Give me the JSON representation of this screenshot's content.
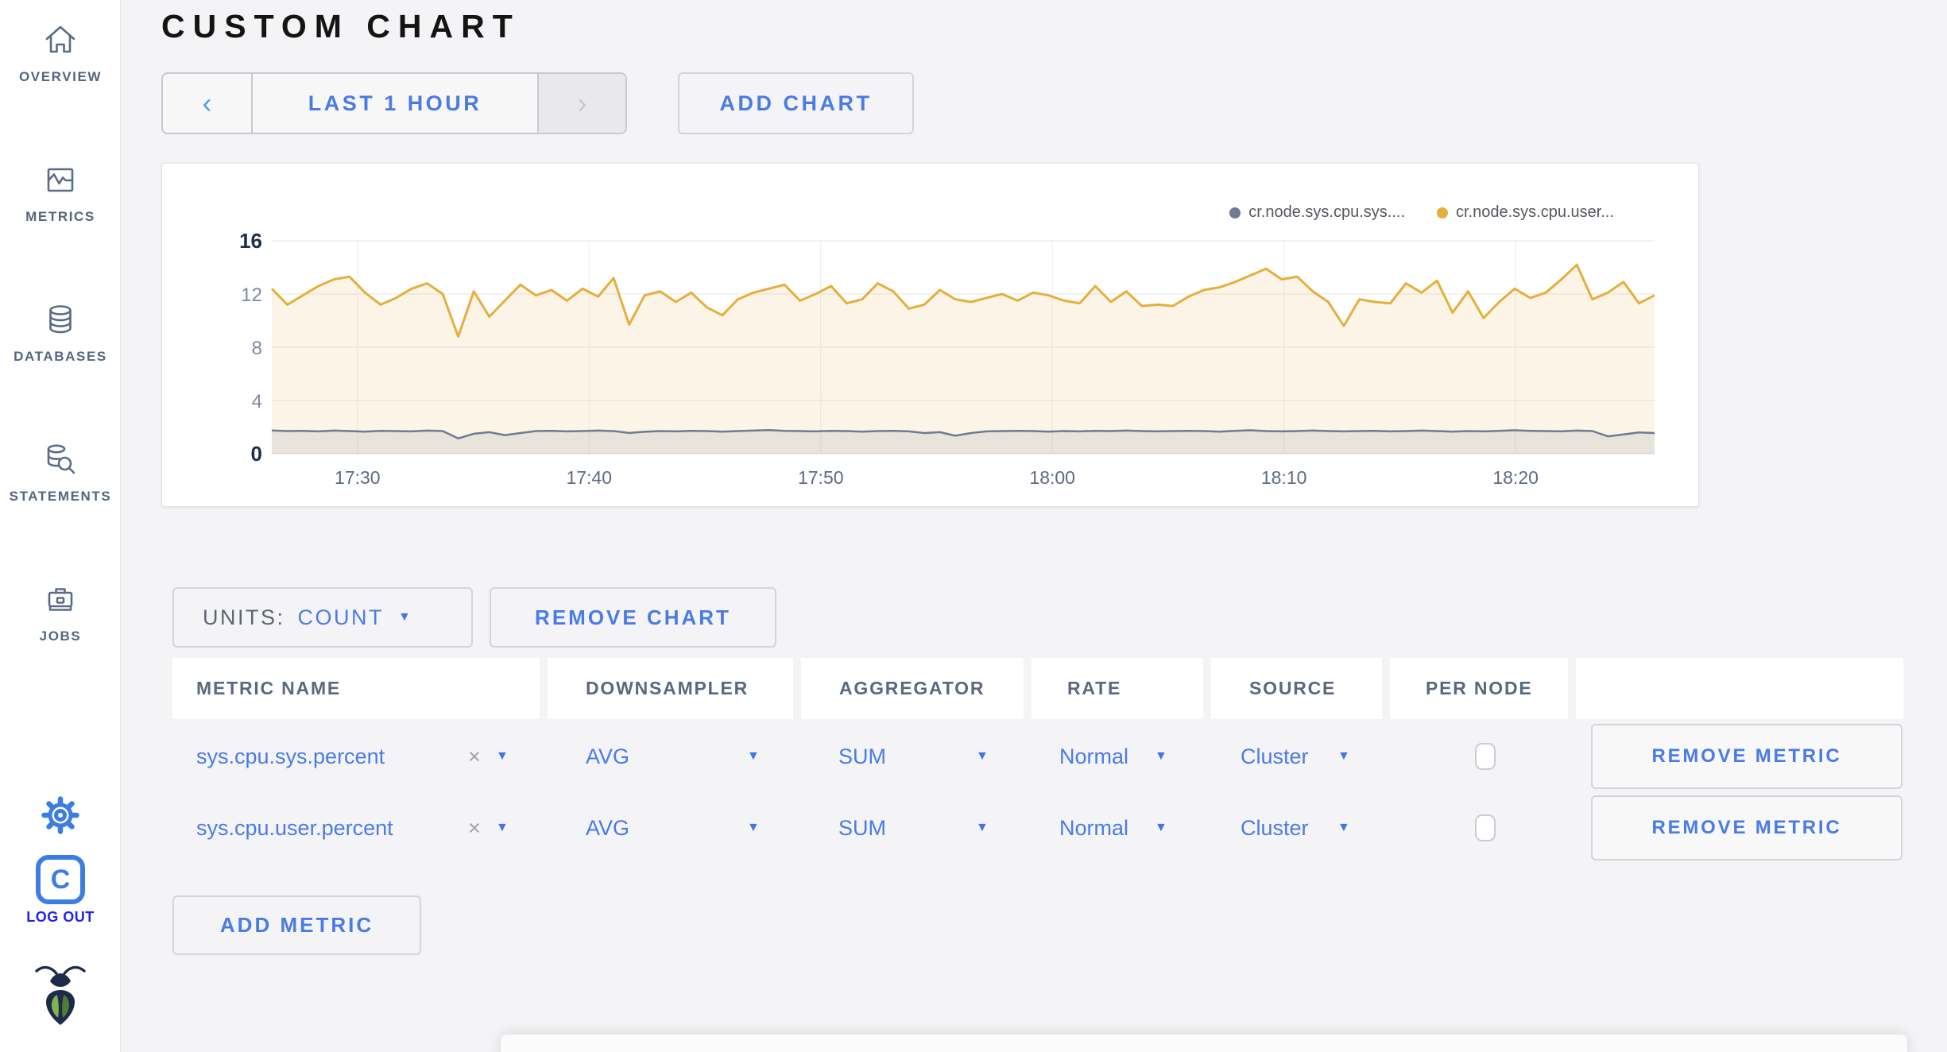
{
  "page_title": "CUSTOM CHART",
  "ui": {
    "caret_glyph": "▼"
  },
  "colors": {
    "accent_blue": "#4A7BE5",
    "icon_blue": "#3C7DE3",
    "logout_blue": "#2522E8",
    "series_yellow": "#E5AF3D",
    "series_gray": "#6F7A93",
    "sidebar_label": "#54667F"
  },
  "sidebar": {
    "items": [
      {
        "label": "OVERVIEW",
        "icon": "home-icon"
      },
      {
        "label": "METRICS",
        "icon": "metrics-icon"
      },
      {
        "label": "DATABASES",
        "icon": "databases-icon"
      },
      {
        "label": "STATEMENTS",
        "icon": "statements-icon"
      },
      {
        "label": "JOBS",
        "icon": "jobs-icon"
      }
    ],
    "settings_icon": "gear-icon",
    "logout": {
      "label": "LOG OUT",
      "badge_letter": "C",
      "icon": "c-logo-icon"
    },
    "brand_icon": "cockroach-logo"
  },
  "time_selector": {
    "prev_label": "‹",
    "range_label": "LAST 1 HOUR",
    "next_label": "›"
  },
  "add_chart_label": "ADD CHART",
  "chart_data": {
    "type": "line",
    "title": "",
    "xlabel": "",
    "ylabel": "",
    "ylim": [
      0,
      16
    ],
    "y_ticks": [
      0,
      4,
      8,
      12,
      16
    ],
    "grid": true,
    "legend_position": "top-right",
    "x_tick_labels": [
      "17:30",
      "17:40",
      "17:50",
      "18:00",
      "18:10",
      "18:20"
    ],
    "x_tick_minutes": [
      3.7,
      13.7,
      23.7,
      33.7,
      43.7,
      53.7
    ],
    "duration_minutes": 59.7,
    "series": [
      {
        "name": "cr.node.sys.cpu.sys....",
        "color": "#6F7A93",
        "fill": "rgba(111,122,147,0.14)",
        "values": [
          1.75,
          1.7,
          1.72,
          1.68,
          1.74,
          1.7,
          1.66,
          1.72,
          1.7,
          1.68,
          1.74,
          1.7,
          1.15,
          1.5,
          1.62,
          1.4,
          1.55,
          1.7,
          1.72,
          1.68,
          1.7,
          1.74,
          1.7,
          1.56,
          1.65,
          1.7,
          1.68,
          1.72,
          1.7,
          1.66,
          1.7,
          1.74,
          1.78,
          1.72,
          1.7,
          1.68,
          1.72,
          1.7,
          1.66,
          1.7,
          1.72,
          1.68,
          1.55,
          1.62,
          1.35,
          1.55,
          1.68,
          1.7,
          1.72,
          1.7,
          1.66,
          1.7,
          1.68,
          1.72,
          1.7,
          1.74,
          1.7,
          1.68,
          1.7,
          1.72,
          1.7,
          1.66,
          1.72,
          1.76,
          1.7,
          1.68,
          1.7,
          1.74,
          1.7,
          1.68,
          1.7,
          1.72,
          1.68,
          1.7,
          1.74,
          1.7,
          1.66,
          1.7,
          1.68,
          1.72,
          1.76,
          1.72,
          1.7,
          1.68,
          1.74,
          1.7,
          1.3,
          1.45,
          1.6,
          1.55
        ]
      },
      {
        "name": "cr.node.sys.cpu.user...",
        "color": "#E5AF3D",
        "fill": "rgba(229,175,61,0.12)",
        "values": [
          12.4,
          11.2,
          11.9,
          12.6,
          13.1,
          13.3,
          12.1,
          11.2,
          11.7,
          12.4,
          12.8,
          12.0,
          8.8,
          12.2,
          10.3,
          11.5,
          12.7,
          11.9,
          12.3,
          11.5,
          12.4,
          11.8,
          13.2,
          9.7,
          11.9,
          12.2,
          11.4,
          12.1,
          11.0,
          10.4,
          11.6,
          12.1,
          12.4,
          12.7,
          11.5,
          12.0,
          12.6,
          11.3,
          11.6,
          12.8,
          12.2,
          10.9,
          11.2,
          12.3,
          11.6,
          11.4,
          11.7,
          12.0,
          11.5,
          12.1,
          11.9,
          11.5,
          11.3,
          12.6,
          11.4,
          12.2,
          11.1,
          11.2,
          11.1,
          11.8,
          12.3,
          12.5,
          12.9,
          13.4,
          13.9,
          13.1,
          13.3,
          12.2,
          11.4,
          9.6,
          11.6,
          11.4,
          11.3,
          12.8,
          12.1,
          13.0,
          10.6,
          12.2,
          10.2,
          11.4,
          12.4,
          11.7,
          12.1,
          13.1,
          14.2,
          11.6,
          12.1,
          12.9,
          11.3,
          11.9
        ]
      }
    ]
  },
  "chart_controls": {
    "units_label": "UNITS:",
    "units_value": "COUNT",
    "remove_chart_label": "REMOVE CHART",
    "add_metric_label": "ADD METRIC"
  },
  "metrics_table": {
    "headers": [
      "METRIC NAME",
      "DOWNSAMPLER",
      "AGGREGATOR",
      "RATE",
      "SOURCE",
      "PER NODE",
      ""
    ],
    "rows": [
      {
        "metric_name": "sys.cpu.sys.percent",
        "clear_label": "×",
        "downsampler": "AVG",
        "aggregator": "SUM",
        "rate": "Normal",
        "source": "Cluster",
        "per_node_checked": false,
        "remove_label": "REMOVE METRIC"
      },
      {
        "metric_name": "sys.cpu.user.percent",
        "clear_label": "×",
        "downsampler": "AVG",
        "aggregator": "SUM",
        "rate": "Normal",
        "source": "Cluster",
        "per_node_checked": false,
        "remove_label": "REMOVE METRIC"
      }
    ]
  }
}
